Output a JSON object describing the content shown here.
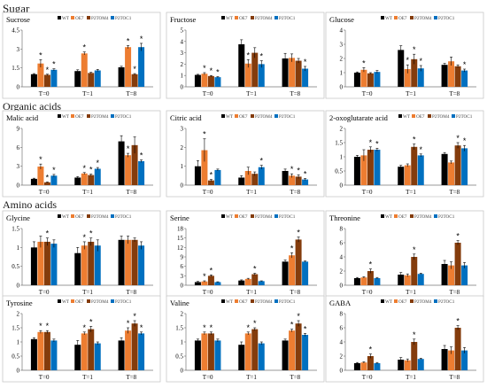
{
  "sections": {
    "sugar": "Sugar",
    "organic": "Organic acids",
    "amino": "Amino acids"
  },
  "colors": {
    "WT": "#000000",
    "OE7": "#ed7d31",
    "P2TOM4": "#843c0c",
    "P2TOC1": "#0070c0",
    "star": "#000000"
  },
  "chart_data": [
    {
      "type": "bar",
      "title": "Sucrose",
      "ylim": [
        0,
        4.5
      ],
      "yticks": [
        "0",
        "1.5",
        "3",
        "4.5"
      ],
      "categories": [
        "T=0",
        "T=1",
        "T=8"
      ],
      "series": [
        {
          "name": "WT",
          "values": [
            1.0,
            1.25,
            1.55
          ],
          "err": [
            0.05,
            0.1,
            0.08
          ]
        },
        {
          "name": "OE7",
          "values": [
            1.85,
            2.65,
            3.15
          ],
          "err": [
            0.3,
            0.12,
            0.12
          ]
        },
        {
          "name": "P2TOM4",
          "values": [
            0.95,
            1.1,
            1.0
          ],
          "err": [
            0.05,
            0.05,
            0.05
          ]
        },
        {
          "name": "P2TOC1",
          "values": [
            1.35,
            1.3,
            3.15
          ],
          "err": [
            0.08,
            0.08,
            0.3
          ]
        }
      ],
      "stars": [
        [
          0,
          1
        ],
        [
          0,
          2
        ],
        [
          0,
          3
        ],
        [
          1,
          1
        ],
        [
          2,
          1
        ],
        [
          2,
          2
        ],
        [
          2,
          3
        ]
      ]
    },
    {
      "type": "bar",
      "title": "Fructose",
      "ylim": [
        0,
        5
      ],
      "yticks": [
        "0",
        "1",
        "2",
        "3",
        "4",
        "5"
      ],
      "categories": [
        "T=0",
        "T=1",
        "T=8"
      ],
      "series": [
        {
          "name": "WT",
          "values": [
            1.05,
            3.75,
            2.5
          ],
          "err": [
            0.05,
            0.4,
            0.45
          ]
        },
        {
          "name": "OE7",
          "values": [
            1.15,
            2.05,
            2.55
          ],
          "err": [
            0.1,
            0.35,
            0.35
          ]
        },
        {
          "name": "P2TOM4",
          "values": [
            0.95,
            3.0,
            2.3
          ],
          "err": [
            0.05,
            0.45,
            0.2
          ]
        },
        {
          "name": "P2TOC1",
          "values": [
            0.85,
            2.0,
            1.6
          ],
          "err": [
            0.05,
            0.3,
            0.2
          ]
        }
      ],
      "stars": [
        [
          0,
          1
        ],
        [
          0,
          2
        ],
        [
          0,
          3
        ],
        [
          1,
          1
        ],
        [
          1,
          3
        ],
        [
          2,
          3
        ]
      ]
    },
    {
      "type": "bar",
      "title": "Glucose",
      "ylim": [
        0,
        4
      ],
      "yticks": [
        "0",
        "1",
        "2",
        "3",
        "4"
      ],
      "categories": [
        "T=0",
        "T=1",
        "T=8"
      ],
      "series": [
        {
          "name": "WT",
          "values": [
            1.0,
            2.6,
            1.55
          ],
          "err": [
            0.05,
            0.3,
            0.1
          ]
        },
        {
          "name": "OE7",
          "values": [
            1.2,
            1.25,
            1.8
          ],
          "err": [
            0.15,
            0.3,
            0.3
          ]
        },
        {
          "name": "P2TOM4",
          "values": [
            0.95,
            1.95,
            1.45
          ],
          "err": [
            0.05,
            0.35,
            0.1
          ]
        },
        {
          "name": "P2TOC1",
          "values": [
            1.05,
            1.3,
            1.15
          ],
          "err": [
            0.1,
            0.2,
            0.1
          ]
        }
      ],
      "stars": [
        [
          0,
          1
        ],
        [
          1,
          1
        ],
        [
          1,
          2
        ],
        [
          1,
          3
        ],
        [
          2,
          3
        ]
      ]
    },
    {
      "type": "bar",
      "title": "Malic acid",
      "ylim": [
        0,
        9
      ],
      "yticks": [
        "0",
        "3",
        "6",
        "9"
      ],
      "categories": [
        "T=0",
        "T=1",
        "T=8"
      ],
      "series": [
        {
          "name": "WT",
          "values": [
            1.0,
            1.2,
            6.95
          ],
          "err": [
            0.1,
            0.15,
            0.9
          ]
        },
        {
          "name": "OE7",
          "values": [
            2.95,
            1.85,
            4.75
          ],
          "err": [
            0.4,
            0.15,
            0.3
          ]
        },
        {
          "name": "P2TOM4",
          "values": [
            0.45,
            1.6,
            6.35
          ],
          "err": [
            0.05,
            0.15,
            1.3
          ]
        },
        {
          "name": "P2TOC1",
          "values": [
            1.5,
            2.6,
            3.8
          ],
          "err": [
            0.2,
            0.2,
            0.2
          ]
        }
      ],
      "stars": [
        [
          0,
          1
        ],
        [
          0,
          2
        ],
        [
          0,
          3
        ],
        [
          1,
          1
        ],
        [
          1,
          2
        ],
        [
          1,
          3
        ],
        [
          2,
          1
        ],
        [
          2,
          3
        ]
      ]
    },
    {
      "type": "bar",
      "title": "Citric acid",
      "ylim": [
        0,
        3
      ],
      "yticks": [
        "0",
        "1",
        "2",
        "3"
      ],
      "categories": [
        "T=0",
        "T=1",
        "T=8"
      ],
      "series": [
        {
          "name": "WT",
          "values": [
            1.0,
            0.4,
            0.75
          ],
          "err": [
            0.3,
            0.1,
            0.1
          ]
        },
        {
          "name": "OE7",
          "values": [
            1.85,
            0.75,
            0.5
          ],
          "err": [
            0.6,
            0.2,
            0.1
          ]
        },
        {
          "name": "P2TOM4",
          "values": [
            0.25,
            0.6,
            0.45
          ],
          "err": [
            0.05,
            0.1,
            0.1
          ]
        },
        {
          "name": "P2TOC1",
          "values": [
            0.8,
            0.95,
            0.3
          ],
          "err": [
            0.05,
            0.1,
            0.05
          ]
        }
      ],
      "stars": [
        [
          0,
          1
        ],
        [
          0,
          2
        ],
        [
          1,
          3
        ],
        [
          2,
          1
        ],
        [
          2,
          2
        ],
        [
          2,
          3
        ]
      ]
    },
    {
      "type": "bar",
      "title": "2-oxoglutarate acid",
      "ylim": [
        0,
        2
      ],
      "yticks": [
        "0",
        "0.5",
        "1",
        "1.5",
        "2"
      ],
      "categories": [
        "T=0",
        "T=1",
        "T=8"
      ],
      "series": [
        {
          "name": "WT",
          "values": [
            1.0,
            0.65,
            1.1
          ],
          "err": [
            0.05,
            0.05,
            0.05
          ]
        },
        {
          "name": "OE7",
          "values": [
            1.05,
            0.7,
            0.8
          ],
          "err": [
            0.2,
            0.05,
            0.05
          ]
        },
        {
          "name": "P2TOM4",
          "values": [
            1.25,
            1.35,
            1.4
          ],
          "err": [
            0.1,
            0.1,
            0.1
          ]
        },
        {
          "name": "P2TOC1",
          "values": [
            1.25,
            1.05,
            1.3
          ],
          "err": [
            0.05,
            0.05,
            0.1
          ]
        }
      ],
      "stars": [
        [
          0,
          2
        ],
        [
          0,
          3
        ],
        [
          1,
          2
        ],
        [
          1,
          3
        ],
        [
          2,
          2
        ],
        [
          2,
          3
        ]
      ]
    },
    {
      "type": "bar",
      "title": "Glycine",
      "ylim": [
        0,
        1.5
      ],
      "yticks": [
        "0",
        "0.5",
        "1",
        "1.5"
      ],
      "categories": [
        "T=0",
        "T=1",
        "T=8"
      ],
      "series": [
        {
          "name": "WT",
          "values": [
            1.0,
            0.85,
            1.2
          ],
          "err": [
            0.15,
            0.15,
            0.1
          ]
        },
        {
          "name": "OE7",
          "values": [
            1.15,
            1.05,
            1.2
          ],
          "err": [
            0.15,
            0.1,
            0.1
          ]
        },
        {
          "name": "P2TOM4",
          "values": [
            1.15,
            1.15,
            1.2
          ],
          "err": [
            0.1,
            0.1,
            0.05
          ]
        },
        {
          "name": "P2TOC1",
          "values": [
            1.1,
            1.05,
            1.05
          ],
          "err": [
            0.1,
            0.15,
            0.1
          ]
        }
      ],
      "stars": [
        [
          0,
          2
        ],
        [
          1,
          1
        ],
        [
          1,
          2
        ]
      ]
    },
    {
      "type": "bar",
      "title": "Serine",
      "ylim": [
        0,
        18
      ],
      "yticks": [
        "0",
        "3",
        "6",
        "9",
        "12",
        "15",
        "18"
      ],
      "categories": [
        "T=0",
        "T=1",
        "T=8"
      ],
      "series": [
        {
          "name": "WT",
          "values": [
            1.0,
            1.5,
            7.5
          ],
          "err": [
            0.2,
            0.2,
            0.5
          ]
        },
        {
          "name": "OE7",
          "values": [
            1.2,
            2.0,
            9.5
          ],
          "err": [
            0.2,
            0.2,
            0.8
          ]
        },
        {
          "name": "P2TOM4",
          "values": [
            3.0,
            3.5,
            14.5
          ],
          "err": [
            0.3,
            0.3,
            0.8
          ]
        },
        {
          "name": "P2TOC1",
          "values": [
            1.0,
            1.3,
            7.5
          ],
          "err": [
            0.1,
            0.1,
            0.2
          ]
        }
      ],
      "stars": [
        [
          0,
          1
        ],
        [
          0,
          2
        ],
        [
          1,
          2
        ],
        [
          2,
          1
        ],
        [
          2,
          2
        ]
      ]
    },
    {
      "type": "bar",
      "title": "Threonine",
      "ylim": [
        0,
        8
      ],
      "yticks": [
        "0",
        "2",
        "4",
        "6",
        "8"
      ],
      "categories": [
        "T=0",
        "T=1",
        "T=8"
      ],
      "series": [
        {
          "name": "WT",
          "values": [
            1.0,
            1.5,
            3.0
          ],
          "err": [
            0.1,
            0.3,
            0.5
          ]
        },
        {
          "name": "OE7",
          "values": [
            1.1,
            1.4,
            2.8
          ],
          "err": [
            0.1,
            0.2,
            0.5
          ]
        },
        {
          "name": "P2TOM4",
          "values": [
            2.0,
            4.0,
            6.0
          ],
          "err": [
            0.3,
            0.4,
            0.3
          ]
        },
        {
          "name": "P2TOC1",
          "values": [
            1.0,
            1.6,
            2.8
          ],
          "err": [
            0.1,
            0.1,
            0.4
          ]
        }
      ],
      "stars": [
        [
          0,
          2
        ],
        [
          1,
          2
        ],
        [
          2,
          2
        ]
      ]
    },
    {
      "type": "bar",
      "title": "Tyrosine",
      "ylim": [
        0,
        2
      ],
      "yticks": [
        "0",
        "0.5",
        "1",
        "1.5",
        "2"
      ],
      "categories": [
        "T=0",
        "T=1",
        "T=8"
      ],
      "series": [
        {
          "name": "WT",
          "values": [
            1.1,
            0.9,
            1.05
          ],
          "err": [
            0.05,
            0.15,
            0.1
          ]
        },
        {
          "name": "OE7",
          "values": [
            1.35,
            1.3,
            1.4
          ],
          "err": [
            0.05,
            0.05,
            0.1
          ]
        },
        {
          "name": "P2TOM4",
          "values": [
            1.35,
            1.45,
            1.65
          ],
          "err": [
            0.05,
            0.1,
            0.1
          ]
        },
        {
          "name": "P2TOC1",
          "values": [
            1.05,
            0.95,
            1.3
          ],
          "err": [
            0.05,
            0.05,
            0.05
          ]
        }
      ],
      "stars": [
        [
          0,
          1
        ],
        [
          0,
          2
        ],
        [
          1,
          1
        ],
        [
          1,
          2
        ],
        [
          2,
          1
        ],
        [
          2,
          2
        ],
        [
          2,
          3
        ]
      ]
    },
    {
      "type": "bar",
      "title": "Valine",
      "ylim": [
        0,
        2
      ],
      "yticks": [
        "0",
        "0.5",
        "1",
        "1.5",
        "2"
      ],
      "categories": [
        "T=0",
        "T=1",
        "T=8"
      ],
      "series": [
        {
          "name": "WT",
          "values": [
            1.05,
            0.9,
            1.05
          ],
          "err": [
            0.05,
            0.1,
            0.05
          ]
        },
        {
          "name": "OE7",
          "values": [
            1.3,
            1.3,
            1.4
          ],
          "err": [
            0.05,
            0.05,
            0.05
          ]
        },
        {
          "name": "P2TOM4",
          "values": [
            1.3,
            1.45,
            1.65
          ],
          "err": [
            0.05,
            0.05,
            0.1
          ]
        },
        {
          "name": "P2TOC1",
          "values": [
            1.05,
            0.95,
            1.25
          ],
          "err": [
            0.05,
            0.05,
            0.05
          ]
        }
      ],
      "stars": [
        [
          0,
          1
        ],
        [
          0,
          2
        ],
        [
          1,
          1
        ],
        [
          1,
          2
        ],
        [
          2,
          1
        ],
        [
          2,
          2
        ],
        [
          2,
          3
        ]
      ]
    },
    {
      "type": "bar",
      "title": "GABA",
      "ylim": [
        0,
        8
      ],
      "yticks": [
        "0",
        "2",
        "4",
        "6",
        "8"
      ],
      "categories": [
        "T=0",
        "T=1",
        "T=8"
      ],
      "series": [
        {
          "name": "WT",
          "values": [
            1.0,
            1.5,
            3.0
          ],
          "err": [
            0.1,
            0.3,
            0.5
          ]
        },
        {
          "name": "OE7",
          "values": [
            1.1,
            1.4,
            2.8
          ],
          "err": [
            0.1,
            0.2,
            0.5
          ]
        },
        {
          "name": "P2TOM4",
          "values": [
            2.0,
            4.0,
            6.0
          ],
          "err": [
            0.3,
            0.4,
            0.3
          ]
        },
        {
          "name": "P2TOC1",
          "values": [
            1.0,
            1.6,
            2.8
          ],
          "err": [
            0.1,
            0.1,
            0.4
          ]
        }
      ],
      "stars": [
        [
          0,
          2
        ],
        [
          1,
          2
        ],
        [
          2,
          2
        ]
      ]
    }
  ]
}
